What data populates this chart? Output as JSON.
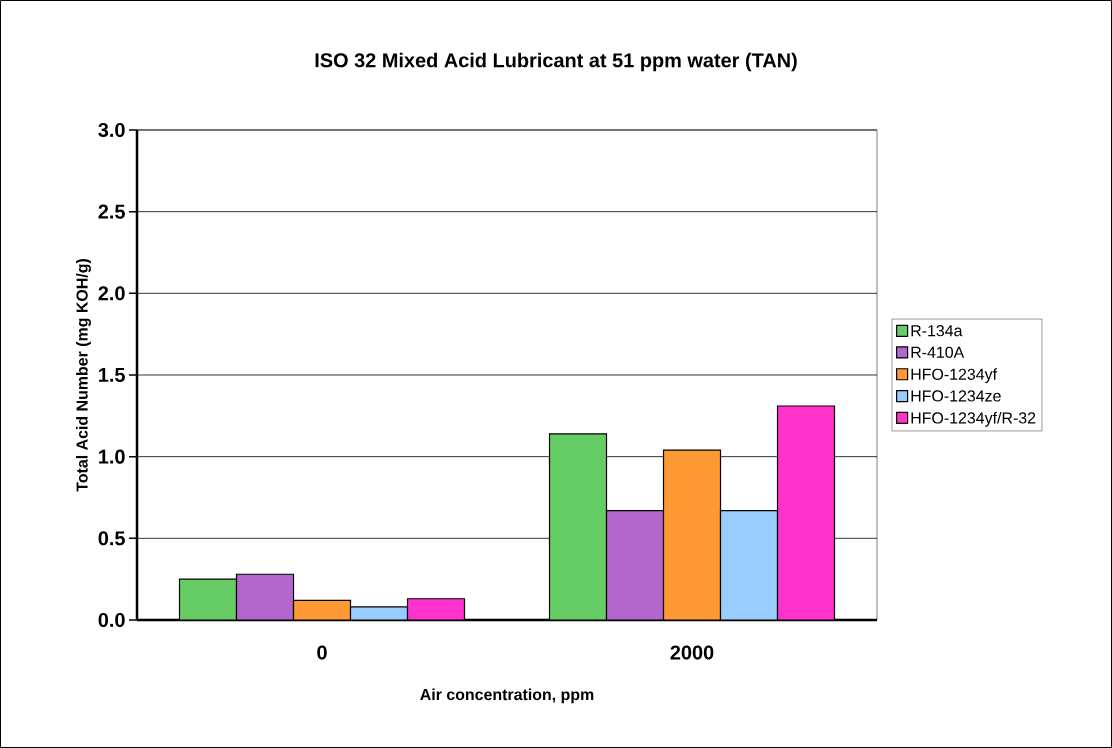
{
  "chart_data": {
    "type": "bar",
    "title": "ISO 32 Mixed Acid Lubricant at 51 ppm water (TAN)",
    "xlabel": "Air concentration, ppm",
    "ylabel": "Total Acid Number (mg KOH/g)",
    "categories": [
      "0",
      "2000"
    ],
    "series": [
      {
        "name": "R-134a",
        "color": "#66cc66",
        "values": [
          0.25,
          1.14
        ]
      },
      {
        "name": "R-410A",
        "color": "#b366cc",
        "values": [
          0.28,
          0.67
        ]
      },
      {
        "name": "HFO-1234yf",
        "color": "#ff9933",
        "values": [
          0.12,
          1.04
        ]
      },
      {
        "name": "HFO-1234ze",
        "color": "#99ccff",
        "values": [
          0.08,
          0.67
        ]
      },
      {
        "name": "HFO-1234yf/R-32",
        "color": "#ff33cc",
        "values": [
          0.13,
          1.31
        ]
      }
    ],
    "ylim": [
      0,
      3.0
    ],
    "yticks": [
      {
        "value": 0,
        "label": "0.0"
      },
      {
        "value": 0.5,
        "label": "0.5"
      },
      {
        "value": 1.0,
        "label": "1.0"
      },
      {
        "value": 1.5,
        "label": "1.5"
      },
      {
        "value": 2.0,
        "label": "2.0"
      },
      {
        "value": 2.5,
        "label": "2.5"
      },
      {
        "value": 3.0,
        "label": "3.0"
      }
    ],
    "grid": "y",
    "legend": "right"
  }
}
